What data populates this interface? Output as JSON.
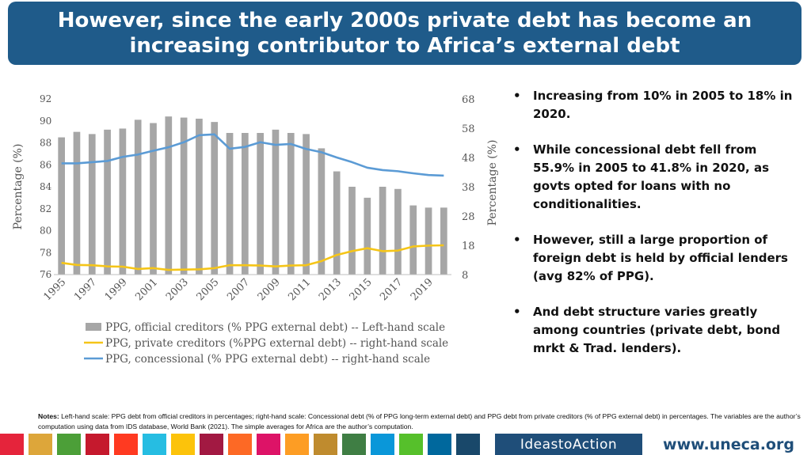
{
  "header": {
    "title_line1": "However, since the early 2000s private debt has become an",
    "title_line2": "increasing contributor to Africa’s external debt"
  },
  "chart_data": {
    "type": "bar+line",
    "categories": [
      "1995",
      "1996",
      "1997",
      "1998",
      "1999",
      "2000",
      "2001",
      "2002",
      "2003",
      "2004",
      "2005",
      "2006",
      "2007",
      "2008",
      "2009",
      "2010",
      "2011",
      "2012",
      "2013",
      "2014",
      "2015",
      "2016",
      "2017",
      "2018",
      "2019",
      "2020"
    ],
    "x_tick_labels": [
      "1995",
      "1997",
      "1999",
      "2001",
      "2003",
      "2005",
      "2007",
      "2009",
      "2011",
      "2013",
      "2015",
      "2017",
      "2019"
    ],
    "ylabel_left": "Percentage (%)",
    "ylabel_right": "Percentage (%)",
    "ylim_left": [
      76,
      92
    ],
    "yticks_left": [
      "76",
      "78",
      "80",
      "82",
      "84",
      "86",
      "88",
      "90",
      "92"
    ],
    "ylim_right": [
      8,
      68
    ],
    "yticks_right": [
      "8",
      "18",
      "28",
      "38",
      "48",
      "58",
      "68"
    ],
    "series": [
      {
        "name": "PPG, official creditors (% PPG external debt) -- Left-hand scale",
        "type": "bar",
        "axis": "left",
        "color": "#a6a6a6",
        "values": [
          88.5,
          89.0,
          88.8,
          89.2,
          89.3,
          90.1,
          89.8,
          90.4,
          90.3,
          90.2,
          89.9,
          88.9,
          88.9,
          88.9,
          89.2,
          88.9,
          88.8,
          87.5,
          85.4,
          84.0,
          83.0,
          84.0,
          83.8,
          82.3,
          82.1,
          82.1
        ]
      },
      {
        "name": "PPG, private creditors (%PPG external debt) -- right-hand scale",
        "type": "line",
        "axis": "right",
        "color": "#f5c518",
        "values": [
          12.0,
          11.3,
          11.2,
          10.8,
          10.7,
          9.9,
          10.2,
          9.6,
          9.7,
          9.8,
          10.2,
          11.2,
          11.2,
          11.1,
          10.8,
          11.1,
          11.2,
          12.6,
          14.7,
          16.0,
          17.0,
          16.0,
          16.2,
          17.6,
          17.9,
          18.0
        ]
      },
      {
        "name": "PPG, concessional (% PPG external debt) -- right-hand scale",
        "type": "line",
        "axis": "right",
        "color": "#5b9bd5",
        "values": [
          46.0,
          46.0,
          46.4,
          46.8,
          48.2,
          49.0,
          50.3,
          51.5,
          53.2,
          55.6,
          55.9,
          51.0,
          51.6,
          53.2,
          52.3,
          52.6,
          50.9,
          49.8,
          48.0,
          46.4,
          44.5,
          43.7,
          43.3,
          42.6,
          42.0,
          41.8
        ]
      }
    ],
    "legend_position": "bottom"
  },
  "bullets": [
    "Increasing from 10% in 2005 to 18% in 2020.",
    "While concessional debt fell from 55.9% in 2005 to 41.8% in 2020, as govts opted for loans with no conditionalities.",
    "However, still a large proportion of foreign debt is held by official lenders (avg 82% of PPG).",
    "And debt structure varies greatly among countries (private debt, bond mrkt & Trad. lenders)."
  ],
  "bullet_glyph": "•",
  "notes": {
    "label": "Notes:",
    "text": " Left-hand scale: PPG debt from official creditors in percentages; right-hand scale: Concessional debt (% of PPG long-term external debt) and PPG debt from private creditors (% of PPG external debt) in percentages. The variables are the author’s computation using data from IDS database, World Bank (2021). The simple averages for Africa are the author’s computation."
  },
  "footer": {
    "brand": "IdeastoAction",
    "url": "www.uneca.org",
    "sdg_colors": [
      "#e5243b",
      "#dda63a",
      "#4c9f38",
      "#c5192d",
      "#ff3a21",
      "#26bde2",
      "#fcc30b",
      "#a21942",
      "#fd6925",
      "#dd1367",
      "#fd9d24",
      "#bf8b2e",
      "#3f7e44",
      "#0a97d9",
      "#56c02b",
      "#00689d",
      "#19486a"
    ]
  }
}
